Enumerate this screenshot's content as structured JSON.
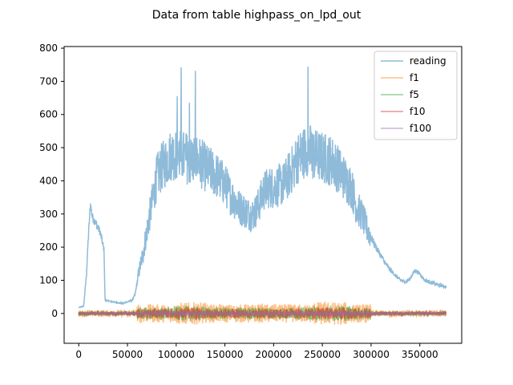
{
  "chart_data": {
    "type": "line",
    "title": "Data from table highpass_on_lpd_out",
    "xlabel": "",
    "ylabel": "",
    "xlim": [
      -15000,
      393000
    ],
    "ylim": [
      -90,
      805
    ],
    "xticks": [
      0,
      50000,
      100000,
      150000,
      200000,
      250000,
      300000,
      350000
    ],
    "xtick_labels": [
      "0",
      "50000",
      "100000",
      "150000",
      "200000",
      "250000",
      "300000",
      "350000"
    ],
    "yticks": [
      0,
      100,
      200,
      300,
      400,
      500,
      600,
      700,
      800
    ],
    "ytick_labels": [
      "0",
      "100",
      "200",
      "300",
      "400",
      "500",
      "600",
      "700",
      "800"
    ],
    "grid": false,
    "legend_position": "top-right",
    "series": [
      {
        "name": "reading",
        "color": "#1f77b4",
        "opacity": 0.5,
        "points": [
          [
            0,
            18
          ],
          [
            5000,
            22
          ],
          [
            8000,
            120
          ],
          [
            10000,
            240
          ],
          [
            12000,
            330
          ],
          [
            14000,
            290
          ],
          [
            18000,
            270
          ],
          [
            22000,
            245
          ],
          [
            26000,
            190
          ],
          [
            27000,
            40
          ],
          [
            35000,
            35
          ],
          [
            45000,
            30
          ],
          [
            55000,
            40
          ],
          [
            58000,
            60
          ],
          [
            62000,
            130
          ],
          [
            66000,
            180
          ],
          [
            70000,
            250
          ],
          [
            75000,
            330
          ],
          [
            80000,
            410
          ],
          [
            85000,
            440
          ],
          [
            90000,
            460
          ],
          [
            95000,
            480
          ],
          [
            100000,
            480
          ],
          [
            110000,
            470
          ],
          [
            115000,
            460
          ],
          [
            120000,
            470
          ],
          [
            130000,
            440
          ],
          [
            140000,
            420
          ],
          [
            150000,
            390
          ],
          [
            155000,
            360
          ],
          [
            160000,
            340
          ],
          [
            165000,
            320
          ],
          [
            170000,
            310
          ],
          [
            175000,
            300
          ],
          [
            180000,
            300
          ],
          [
            185000,
            330
          ],
          [
            190000,
            370
          ],
          [
            195000,
            380
          ],
          [
            200000,
            380
          ],
          [
            210000,
            390
          ],
          [
            220000,
            440
          ],
          [
            225000,
            470
          ],
          [
            230000,
            480
          ],
          [
            235000,
            500
          ],
          [
            240000,
            480
          ],
          [
            250000,
            470
          ],
          [
            260000,
            460
          ],
          [
            270000,
            420
          ],
          [
            280000,
            380
          ],
          [
            285000,
            320
          ],
          [
            290000,
            300
          ],
          [
            295000,
            260
          ],
          [
            300000,
            230
          ],
          [
            305000,
            200
          ],
          [
            310000,
            175
          ],
          [
            315000,
            150
          ],
          [
            320000,
            130
          ],
          [
            325000,
            115
          ],
          [
            330000,
            100
          ],
          [
            335000,
            95
          ],
          [
            340000,
            105
          ],
          [
            345000,
            130
          ],
          [
            350000,
            120
          ],
          [
            355000,
            100
          ],
          [
            365000,
            90
          ],
          [
            370000,
            85
          ],
          [
            377000,
            80
          ]
        ]
      },
      {
        "name": "f1",
        "color": "#ff7f0e",
        "opacity": 0.5,
        "amplitude": 28
      },
      {
        "name": "f5",
        "color": "#2ca02c",
        "opacity": 0.5,
        "amplitude": 18
      },
      {
        "name": "f10",
        "color": "#d62728",
        "opacity": 0.5,
        "amplitude": 14
      },
      {
        "name": "f100",
        "color": "#9467bd",
        "opacity": 0.5,
        "amplitude": 6
      }
    ]
  }
}
